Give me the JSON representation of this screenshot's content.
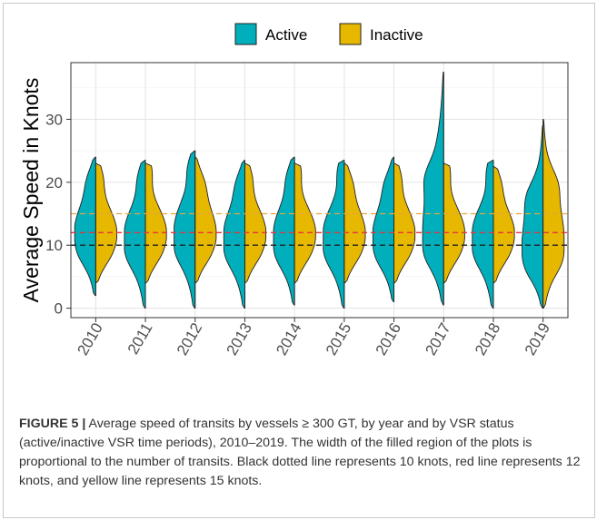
{
  "chart_data": {
    "type": "split-violin",
    "ylabel": "Average Speed in Knots",
    "xlabel": "",
    "ylim": [
      -1.5,
      39
    ],
    "yticks": [
      0,
      10,
      20,
      30
    ],
    "grid": true,
    "legend_position": "top",
    "categories": [
      "2010",
      "2011",
      "2012",
      "2013",
      "2014",
      "2015",
      "2016",
      "2017",
      "2018",
      "2019"
    ],
    "series": [
      {
        "name": "Active",
        "color": "#00AFBB",
        "side": "left",
        "ranges": [
          [
            2,
            24
          ],
          [
            0,
            23.5
          ],
          [
            0,
            25
          ],
          [
            0,
            23.5
          ],
          [
            0.5,
            24
          ],
          [
            0,
            23.5
          ],
          [
            1,
            24
          ],
          [
            0.5,
            37.5
          ],
          [
            0,
            23.5
          ],
          [
            0,
            29
          ]
        ],
        "median": [
          12.5,
          12,
          12.5,
          12,
          12,
          12,
          12,
          12,
          12,
          10
        ]
      },
      {
        "name": "Inactive",
        "color": "#E7B800",
        "side": "right",
        "ranges": [
          [
            4,
            23
          ],
          [
            4,
            23
          ],
          [
            4,
            24
          ],
          [
            4,
            23
          ],
          [
            4,
            23
          ],
          [
            4,
            23
          ],
          [
            4,
            23
          ],
          [
            4,
            23
          ],
          [
            4,
            22.5
          ],
          [
            0,
            30
          ]
        ],
        "median": [
          12,
          12,
          12,
          12,
          12,
          12,
          12,
          12,
          12,
          11
        ]
      }
    ],
    "reference_lines": [
      {
        "value": 10,
        "color": "#222222"
      },
      {
        "value": 12,
        "color": "#e8343c"
      },
      {
        "value": 15,
        "color": "#e8a43c"
      }
    ]
  },
  "caption": {
    "label": "FIGURE 5 |",
    "text": " Average speed of transits by vessels ≥ 300 GT, by year and by VSR status (active/inactive VSR time periods), 2010–2019. The width of the filled region of the plots is proportional to the number of transits. Black dotted line represents 10 knots, red line represents 12 knots, and yellow line represents 15 knots."
  }
}
